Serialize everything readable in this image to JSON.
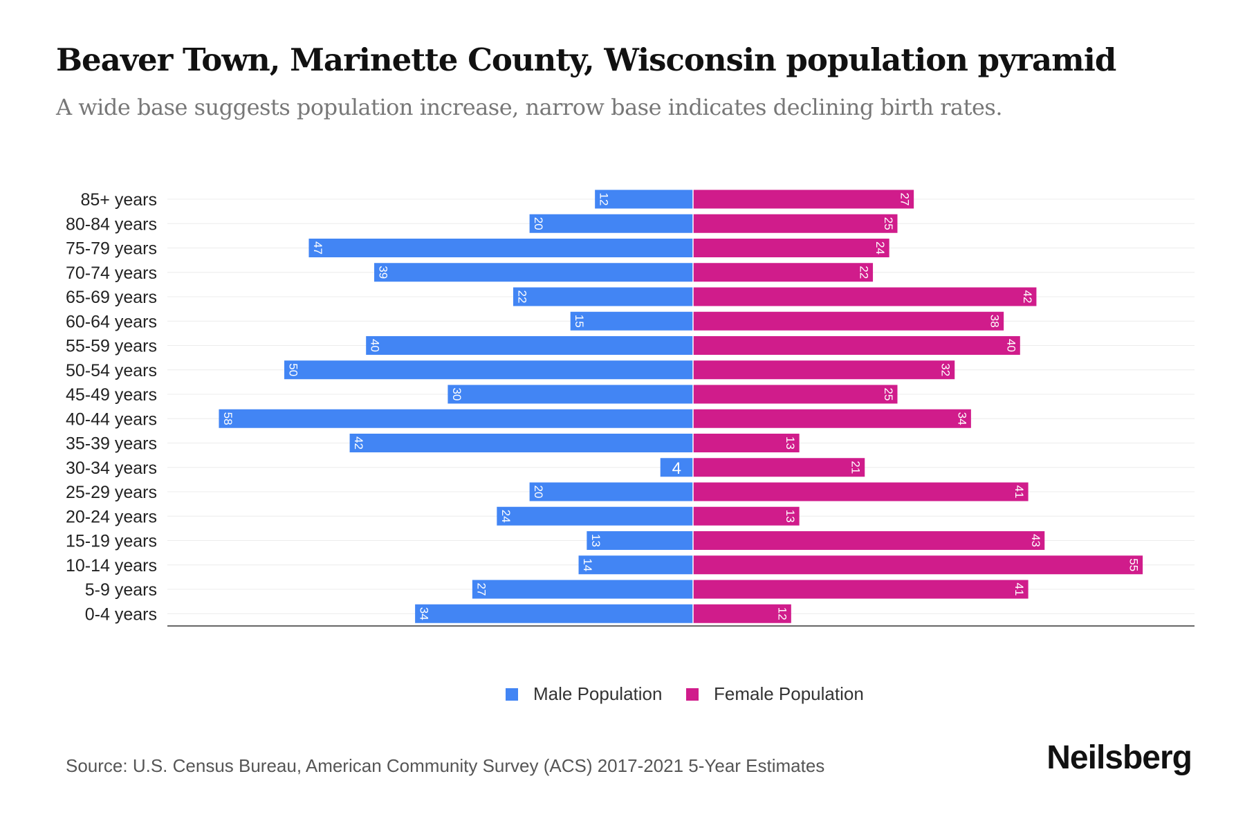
{
  "title": "Beaver Town, Marinette County, Wisconsin population pyramid",
  "subtitle": "A wide base suggests population increase, narrow base indicates declining birth rates.",
  "source": "Source: U.S. Census Bureau, American Community Survey (ACS) 2017-2021 5-Year Estimates",
  "logo": "Neilsberg",
  "colors": {
    "male": "#4285f4",
    "female": "#d01c8b"
  },
  "chart_data": {
    "type": "bar",
    "orientation": "horizontal-pyramid",
    "categories": [
      "85+ years",
      "80-84 years",
      "75-79 years",
      "70-74 years",
      "65-69 years",
      "60-64 years",
      "55-59 years",
      "50-54 years",
      "45-49 years",
      "40-44 years",
      "35-39 years",
      "30-34 years",
      "25-29 years",
      "20-24 years",
      "15-19 years",
      "10-14 years",
      "5-9 years",
      "0-4 years"
    ],
    "series": [
      {
        "name": "Male Population",
        "values": [
          12,
          20,
          47,
          39,
          22,
          15,
          40,
          50,
          30,
          58,
          42,
          4,
          20,
          24,
          13,
          14,
          27,
          34
        ]
      },
      {
        "name": "Female Population",
        "values": [
          27,
          25,
          24,
          22,
          42,
          38,
          40,
          32,
          25,
          34,
          13,
          21,
          41,
          13,
          43,
          55,
          41,
          12
        ]
      }
    ],
    "xlim": [
      -63,
      63
    ],
    "legend": "bottom-center",
    "grid": true
  }
}
